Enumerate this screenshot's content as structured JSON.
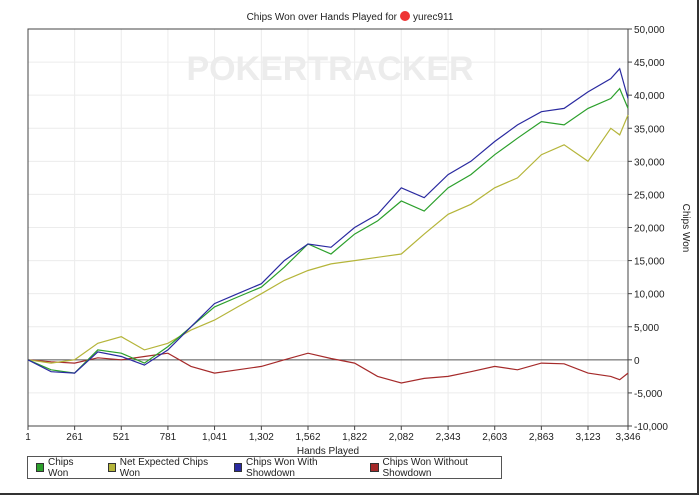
{
  "title": "Chips Won over Hands Played for",
  "player": "yurec911",
  "watermark": "POKERTRACKER",
  "chart_data": {
    "type": "line",
    "title": "Chips Won over Hands Played for yurec911",
    "xlabel": "Hands Played",
    "ylabel": "Chips Won",
    "xlim": [
      1,
      3346
    ],
    "ylim": [
      -10000,
      50000
    ],
    "grid": true,
    "legend": "bottom",
    "xticks": [
      "1",
      "261",
      "521",
      "781",
      "1,041",
      "1,302",
      "1,562",
      "1,822",
      "2,082",
      "2,343",
      "2,603",
      "2,863",
      "3,123",
      "3,346"
    ],
    "xtick_values": [
      1,
      261,
      521,
      781,
      1041,
      1302,
      1562,
      1822,
      2082,
      2343,
      2603,
      2863,
      3123,
      3346
    ],
    "yticks": [
      "50,000",
      "45,000",
      "40,000",
      "35,000",
      "30,000",
      "25,000",
      "20,000",
      "15,000",
      "10,000",
      "5,000",
      "0",
      "-5,000",
      "-10,000"
    ],
    "ytick_values": [
      50000,
      45000,
      40000,
      35000,
      30000,
      25000,
      20000,
      15000,
      10000,
      5000,
      0,
      -5000,
      -10000
    ],
    "x": [
      1,
      130,
      261,
      390,
      521,
      650,
      781,
      910,
      1041,
      1170,
      1302,
      1430,
      1562,
      1690,
      1822,
      1950,
      2082,
      2210,
      2343,
      2470,
      2603,
      2730,
      2863,
      2990,
      3123,
      3250,
      3300,
      3346
    ],
    "series": [
      {
        "name": "Chips Won",
        "color": "#2ca02c",
        "values": [
          0,
          -1500,
          -2000,
          1500,
          1000,
          -500,
          2000,
          5000,
          8000,
          9500,
          11000,
          14000,
          17500,
          16000,
          19000,
          21000,
          24000,
          22500,
          26000,
          28000,
          31000,
          33500,
          36000,
          35500,
          38000,
          39500,
          41000,
          38000
        ]
      },
      {
        "name": "Net Expected Chips Won",
        "color": "#b5b53a",
        "values": [
          0,
          -500,
          0,
          2500,
          3500,
          1500,
          2500,
          4500,
          6000,
          8000,
          10000,
          12000,
          13500,
          14500,
          15000,
          15500,
          16000,
          19000,
          22000,
          23500,
          26000,
          27500,
          31000,
          32500,
          30000,
          35000,
          34000,
          37000
        ]
      },
      {
        "name": "Chips Won With Showdown",
        "color": "#2a2aa0",
        "values": [
          0,
          -1800,
          -2000,
          1200,
          500,
          -800,
          1500,
          5000,
          8500,
          10000,
          11500,
          15000,
          17500,
          17000,
          20000,
          22000,
          26000,
          24500,
          28000,
          30000,
          33000,
          35500,
          37500,
          38000,
          40500,
          42500,
          44000,
          39500
        ]
      },
      {
        "name": "Chips Won Without Showdown",
        "color": "#a52a2a",
        "values": [
          0,
          -300,
          -500,
          300,
          0,
          500,
          1000,
          -1000,
          -2000,
          -1500,
          -1000,
          0,
          1000,
          200,
          -500,
          -2500,
          -3500,
          -2800,
          -2500,
          -1800,
          -1000,
          -1500,
          -500,
          -600,
          -2000,
          -2500,
          -3000,
          -2000
        ]
      }
    ]
  }
}
